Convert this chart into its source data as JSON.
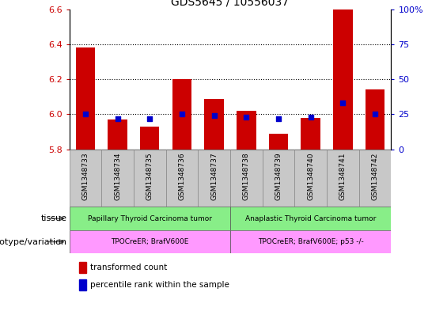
{
  "title": "GDS5645 / 10556037",
  "samples": [
    "GSM1348733",
    "GSM1348734",
    "GSM1348735",
    "GSM1348736",
    "GSM1348737",
    "GSM1348738",
    "GSM1348739",
    "GSM1348740",
    "GSM1348741",
    "GSM1348742"
  ],
  "transformed_counts": [
    6.38,
    5.97,
    5.93,
    6.2,
    6.09,
    6.02,
    5.89,
    5.98,
    6.6,
    6.14
  ],
  "percentile_ranks": [
    25,
    22,
    22,
    25,
    24,
    23,
    22,
    23,
    33,
    25
  ],
  "ylim_left": [
    5.8,
    6.6
  ],
  "ylim_right": [
    0,
    100
  ],
  "yticks_left": [
    5.8,
    6.0,
    6.2,
    6.4,
    6.6
  ],
  "yticks_right": [
    0,
    25,
    50,
    75,
    100
  ],
  "bar_color": "#cc0000",
  "dot_color": "#0000cc",
  "baseline": 5.8,
  "col_bg_color": "#c8c8c8",
  "tissue_groups": [
    {
      "label": "Papillary Thyroid Carcinoma tumor",
      "start": 0,
      "end": 5,
      "color": "#88ee88"
    },
    {
      "label": "Anaplastic Thyroid Carcinoma tumor",
      "start": 5,
      "end": 10,
      "color": "#88ee88"
    }
  ],
  "genotype_groups": [
    {
      "label": "TPOCreER; BrafV600E",
      "start": 0,
      "end": 5,
      "color": "#ff99ff"
    },
    {
      "label": "TPOCreER; BrafV600E; p53 -/-",
      "start": 5,
      "end": 10,
      "color": "#ff99ff"
    }
  ],
  "tissue_label": "tissue",
  "genotype_label": "genotype/variation",
  "legend_items": [
    {
      "color": "#cc0000",
      "label": "transformed count"
    },
    {
      "color": "#0000cc",
      "label": "percentile rank within the sample"
    }
  ],
  "tick_label_color_left": "#cc0000",
  "tick_label_color_right": "#0000cc",
  "grid_yticks": [
    6.0,
    6.2,
    6.4
  ]
}
